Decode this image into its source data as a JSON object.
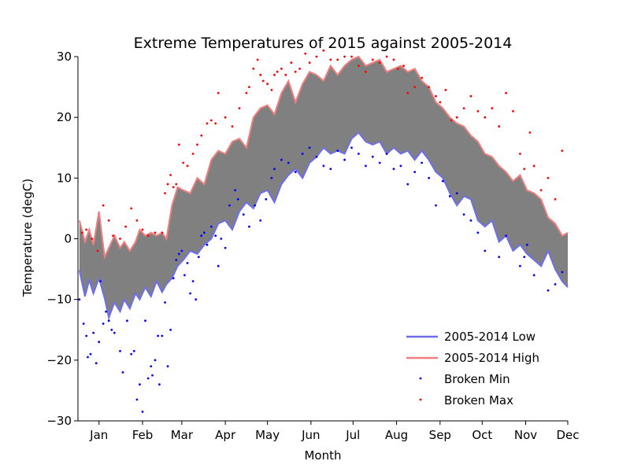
{
  "chart_data": {
    "type": "line",
    "title": "Extreme Temperatures of 2015 against 2005-2014",
    "xlabel": "Month",
    "ylabel": "Temperature (degC)",
    "x_ticks": [
      "Jan",
      "Feb",
      "Mar",
      "Apr",
      "May",
      "Jun",
      "Jul",
      "Aug",
      "Sep",
      "Oct",
      "Nov",
      "Dec"
    ],
    "x_tick_days": [
      15,
      46,
      74,
      105,
      135,
      166,
      196,
      227,
      258,
      288,
      319,
      349
    ],
    "y_ticks": [
      -30,
      -20,
      -10,
      0,
      10,
      20,
      30
    ],
    "xlim": [
      0,
      349
    ],
    "ylim": [
      -30,
      30
    ],
    "fill_between_color": "#808080",
    "x_unit": "day of year",
    "series": [
      {
        "name": "2005-2014 Low",
        "color": "#6e6eea",
        "x": [
          1,
          5,
          8,
          11,
          15,
          19,
          22,
          26,
          30,
          33,
          37,
          41,
          44,
          48,
          52,
          56,
          60,
          63,
          67,
          71,
          75,
          80,
          85,
          90,
          95,
          100,
          105,
          110,
          115,
          120,
          125,
          130,
          135,
          140,
          145,
          150,
          155,
          160,
          165,
          170,
          175,
          180,
          185,
          190,
          195,
          200,
          205,
          210,
          215,
          220,
          225,
          230,
          235,
          240,
          245,
          250,
          255,
          260,
          265,
          270,
          275,
          280,
          285,
          290,
          295,
          300,
          305,
          310,
          315,
          320,
          325,
          330,
          335,
          340,
          345,
          349
        ],
        "values": [
          -5.2,
          -9.5,
          -6.8,
          -9.0,
          -6.5,
          -9.8,
          -13.0,
          -10.5,
          -12.0,
          -10.0,
          -11.5,
          -9.0,
          -10.0,
          -8.0,
          -9.5,
          -7.0,
          -8.8,
          -7.5,
          -6.5,
          -4.5,
          -3.5,
          -2.0,
          -2.5,
          -1.0,
          0.0,
          2.5,
          3.0,
          1.5,
          4.5,
          6.0,
          5.0,
          7.5,
          8.0,
          6.0,
          9.0,
          10.5,
          11.5,
          10.0,
          12.5,
          13.5,
          15.0,
          14.0,
          14.5,
          14.0,
          16.5,
          17.5,
          16.0,
          15.5,
          16.0,
          14.0,
          15.0,
          14.0,
          14.5,
          13.0,
          14.5,
          13.0,
          11.0,
          10.0,
          7.5,
          5.5,
          7.0,
          6.5,
          3.0,
          2.0,
          3.0,
          -0.5,
          0.5,
          -2.0,
          -1.0,
          -2.5,
          -3.5,
          -4.5,
          -2.0,
          -5.0,
          -7.0,
          -8.0
        ]
      },
      {
        "name": "2005-2014 High",
        "color": "#f08080",
        "x": [
          1,
          5,
          8,
          11,
          15,
          19,
          22,
          26,
          30,
          33,
          37,
          41,
          44,
          48,
          52,
          56,
          60,
          63,
          67,
          71,
          75,
          80,
          85,
          90,
          95,
          100,
          105,
          110,
          115,
          120,
          125,
          130,
          135,
          140,
          145,
          150,
          155,
          160,
          165,
          170,
          175,
          180,
          185,
          190,
          195,
          200,
          205,
          210,
          215,
          220,
          225,
          230,
          235,
          240,
          245,
          250,
          255,
          260,
          265,
          270,
          275,
          280,
          285,
          290,
          295,
          300,
          305,
          310,
          315,
          320,
          325,
          330,
          335,
          340,
          345,
          349
        ],
        "values": [
          3.0,
          -0.5,
          1.5,
          -1.0,
          4.5,
          -3.0,
          -1.5,
          0.5,
          -1.5,
          -0.5,
          -2.0,
          -0.5,
          1.5,
          0.5,
          1.0,
          0.5,
          1.0,
          0.0,
          5.5,
          8.5,
          8.0,
          7.5,
          10.0,
          9.0,
          13.0,
          14.5,
          14.0,
          16.0,
          16.5,
          15.0,
          20.0,
          21.5,
          22.0,
          20.5,
          24.0,
          26.0,
          22.5,
          25.5,
          27.5,
          27.0,
          26.0,
          28.5,
          27.0,
          28.5,
          29.5,
          30.0,
          28.5,
          29.0,
          29.5,
          27.5,
          28.0,
          28.5,
          27.5,
          28.0,
          26.0,
          25.0,
          22.5,
          21.5,
          20.0,
          19.0,
          18.5,
          17.0,
          16.0,
          14.0,
          13.5,
          12.0,
          11.0,
          9.5,
          10.5,
          8.0,
          7.5,
          6.5,
          3.5,
          2.5,
          0.5,
          1.0
        ]
      },
      {
        "name": "Broken Min",
        "type": "scatter",
        "color": "#0000ff",
        "x": [
          1,
          4,
          6,
          7,
          9,
          11,
          13,
          15,
          16,
          18,
          20,
          22,
          24,
          26,
          30,
          32,
          35,
          38,
          40,
          42,
          44,
          46,
          48,
          50,
          52,
          53,
          55,
          57,
          58,
          60,
          62,
          64,
          66,
          68,
          70,
          72,
          74,
          76,
          78,
          80,
          82,
          84,
          86,
          88,
          90,
          92,
          95,
          98,
          100,
          102,
          105,
          108,
          112,
          114,
          118,
          122,
          126,
          130,
          134,
          138,
          140,
          145,
          150,
          155,
          160,
          165,
          170,
          175,
          180,
          185,
          190,
          195,
          200,
          205,
          210,
          215,
          220,
          225,
          230,
          235,
          240,
          245,
          250,
          255,
          260,
          265,
          270,
          275,
          280,
          285,
          290,
          300,
          305,
          315,
          318,
          320,
          325,
          335,
          340,
          345
        ],
        "values": [
          -10.0,
          -14.0,
          -16.0,
          -19.5,
          -19.0,
          -15.5,
          -20.5,
          -17.0,
          -7.0,
          -14.0,
          -12.0,
          -13.5,
          -15.0,
          -15.5,
          -18.5,
          -22.0,
          -13.5,
          -19.0,
          -18.5,
          -26.5,
          -24.0,
          -28.5,
          -13.5,
          -23.0,
          -21.0,
          -22.5,
          -20.0,
          -16.0,
          -24.0,
          -16.0,
          -10.5,
          -21.0,
          -15.0,
          -6.5,
          -3.5,
          -2.5,
          -2.0,
          -6.0,
          -4.0,
          -9.0,
          -7.0,
          -10.0,
          -3.0,
          0.5,
          1.0,
          -1.0,
          2.0,
          0.5,
          -4.5,
          0.0,
          -1.5,
          5.5,
          8.0,
          6.5,
          4.0,
          2.0,
          5.5,
          3.0,
          6.5,
          10.0,
          11.5,
          13.0,
          12.5,
          11.0,
          14.0,
          15.0,
          13.5,
          12.0,
          11.5,
          14.5,
          13.0,
          15.0,
          14.0,
          12.0,
          13.5,
          12.5,
          14.0,
          11.5,
          12.0,
          9.0,
          11.0,
          12.5,
          10.0,
          5.5,
          9.5,
          7.0,
          7.5,
          4.0,
          3.0,
          1.0,
          -2.0,
          -3.0,
          0.5,
          -4.5,
          -3.0,
          -1.0,
          -6.0,
          -8.5,
          -7.5,
          -5.5
        ]
      },
      {
        "name": "Broken Max",
        "type": "scatter",
        "color": "#ff0000",
        "x": [
          3,
          6,
          10,
          14,
          18,
          22,
          25,
          30,
          34,
          38,
          42,
          46,
          50,
          55,
          60,
          62,
          64,
          66,
          68,
          70,
          72,
          75,
          78,
          82,
          85,
          88,
          92,
          95,
          98,
          100,
          105,
          110,
          115,
          120,
          122,
          125,
          128,
          130,
          132,
          135,
          138,
          140,
          142,
          145,
          148,
          152,
          155,
          158,
          162,
          165,
          170,
          175,
          180,
          185,
          190,
          195,
          200,
          205,
          210,
          215,
          220,
          225,
          228,
          232,
          235,
          240,
          245,
          250,
          255,
          258,
          262,
          266,
          270,
          275,
          280,
          285,
          290,
          295,
          300,
          305,
          310,
          315,
          318,
          322,
          325,
          330,
          335,
          340,
          345
        ],
        "values": [
          1.0,
          1.5,
          0.0,
          -2.0,
          5.5,
          3.0,
          0.5,
          0.0,
          2.0,
          5.0,
          3.0,
          1.5,
          0.5,
          1.0,
          1.0,
          7.5,
          9.0,
          10.5,
          8.5,
          9.0,
          15.5,
          12.5,
          12.0,
          14.0,
          15.5,
          17.0,
          19.0,
          19.5,
          19.0,
          24.0,
          20.0,
          18.5,
          21.5,
          24.0,
          25.0,
          28.0,
          29.5,
          27.0,
          26.0,
          25.5,
          24.5,
          27.0,
          27.5,
          28.0,
          27.0,
          29.0,
          27.5,
          28.0,
          30.5,
          29.0,
          30.0,
          31.0,
          29.5,
          29.5,
          30.0,
          30.0,
          28.5,
          27.5,
          29.5,
          29.0,
          30.0,
          29.5,
          28.0,
          28.5,
          24.0,
          25.0,
          26.5,
          25.0,
          23.5,
          22.5,
          24.5,
          19.5,
          20.0,
          21.5,
          23.5,
          21.0,
          20.0,
          21.5,
          18.5,
          24.0,
          21.0,
          14.0,
          11.5,
          17.5,
          12.0,
          8.0,
          10.0,
          6.5,
          14.5
        ]
      }
    ],
    "legend": {
      "placement": "lower-right",
      "entries": [
        "2005-2014 Low",
        "2005-2014 High",
        "Broken Min",
        "Broken Max"
      ]
    },
    "grid": false
  }
}
